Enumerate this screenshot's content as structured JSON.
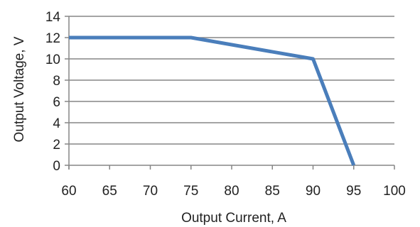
{
  "chart_data": {
    "type": "line",
    "title": "",
    "xlabel": "Output Current, A",
    "ylabel": "Output Voltage, V",
    "xlim": [
      60,
      100
    ],
    "ylim": [
      0,
      14
    ],
    "x_ticks": [
      60,
      65,
      70,
      75,
      80,
      85,
      90,
      95,
      100
    ],
    "y_ticks": [
      0,
      2,
      4,
      6,
      8,
      10,
      12,
      14
    ],
    "x_tick_labels": [
      "60",
      "65",
      "70",
      "75",
      "80",
      "85",
      "90",
      "95",
      "100"
    ],
    "y_tick_labels": [
      "0",
      "2",
      "4",
      "6",
      "8",
      "10",
      "12",
      "14"
    ],
    "grid": {
      "horizontal": true,
      "vertical": false
    },
    "legend": "none",
    "series": [
      {
        "x": [
          60,
          75,
          90,
          95
        ],
        "y": [
          12,
          12,
          10,
          0
        ],
        "color": "#4A7EBB"
      }
    ],
    "colors": {
      "line": "#4A7EBB",
      "grid": "#868686",
      "axis": "#868686",
      "text": "#222222"
    }
  }
}
